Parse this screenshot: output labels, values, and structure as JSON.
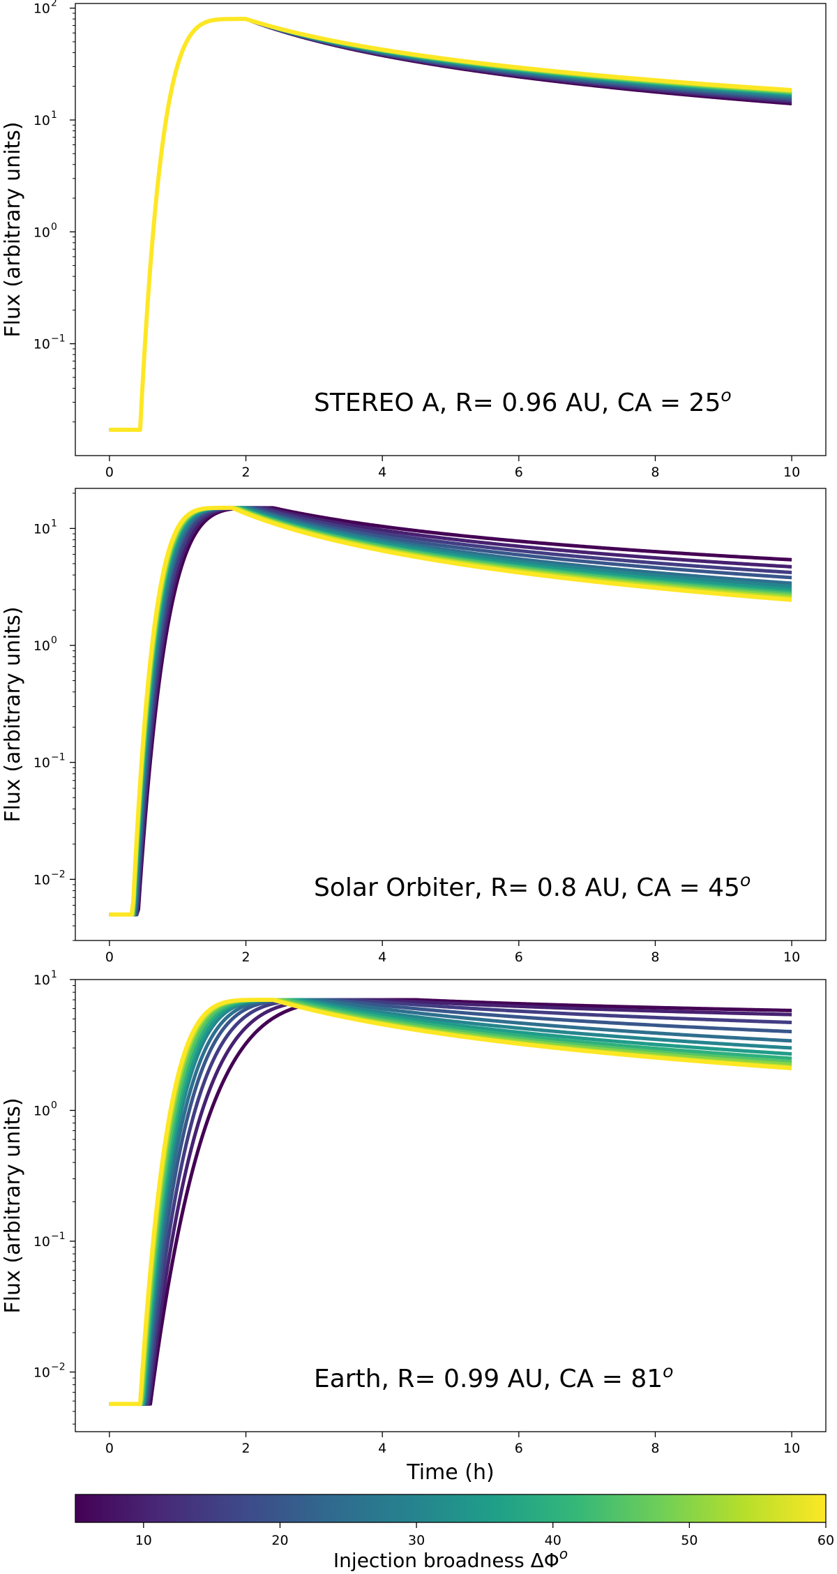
{
  "figure": {
    "colormap": [
      "#440154",
      "#482878",
      "#3e4989",
      "#31688e",
      "#26828e",
      "#1f9e89",
      "#35b779",
      "#6ece58",
      "#b5de2b",
      "#fde725"
    ],
    "colorbar": {
      "label": "Injection broadness ΔΦ",
      "label_superscript": "o",
      "range": [
        5,
        60
      ],
      "ticks": [
        10,
        20,
        30,
        40,
        50,
        60
      ]
    }
  },
  "chart_data": [
    {
      "type": "line",
      "title": "",
      "annotation": "STEREO A, R= 0.96 AU, CA = 25",
      "annotation_superscript": "o",
      "xlabel": "",
      "ylabel": "Flux (arbitrary units)",
      "yscale": "log",
      "xlim": [
        -0.5,
        10.5
      ],
      "ylim": [
        0.01,
        110
      ],
      "xticks": [
        0,
        2,
        4,
        6,
        8,
        10
      ],
      "yticks": [
        {
          "value": 100,
          "base": "10",
          "exp": "2"
        },
        {
          "value": 10,
          "base": "10",
          "exp": "1"
        },
        {
          "value": 1,
          "base": "10",
          "exp": "0"
        },
        {
          "value": 0.1,
          "base": "10",
          "exp": "−1"
        }
      ],
      "series": [
        {
          "name": "ΔΦ=5",
          "param": 5,
          "peak": 80,
          "t_peak": 2.0,
          "end": 14,
          "baseline": 0.017,
          "onset": 0.45
        },
        {
          "name": "ΔΦ=10",
          "param": 10,
          "peak": 80,
          "t_peak": 2.0,
          "end": 14.5,
          "baseline": 0.017,
          "onset": 0.45
        },
        {
          "name": "ΔΦ=15",
          "param": 15,
          "peak": 80,
          "t_peak": 2.0,
          "end": 15,
          "baseline": 0.017,
          "onset": 0.45
        },
        {
          "name": "ΔΦ=20",
          "param": 20,
          "peak": 80,
          "t_peak": 2.0,
          "end": 15.5,
          "baseline": 0.017,
          "onset": 0.45
        },
        {
          "name": "ΔΦ=25",
          "param": 25,
          "peak": 80,
          "t_peak": 2.0,
          "end": 16,
          "baseline": 0.017,
          "onset": 0.45
        },
        {
          "name": "ΔΦ=30",
          "param": 30,
          "peak": 80,
          "t_peak": 2.0,
          "end": 16.5,
          "baseline": 0.017,
          "onset": 0.45
        },
        {
          "name": "ΔΦ=35",
          "param": 35,
          "peak": 80,
          "t_peak": 2.0,
          "end": 17,
          "baseline": 0.017,
          "onset": 0.45
        },
        {
          "name": "ΔΦ=40",
          "param": 40,
          "peak": 80,
          "t_peak": 2.0,
          "end": 17.3,
          "baseline": 0.017,
          "onset": 0.45
        },
        {
          "name": "ΔΦ=45",
          "param": 45,
          "peak": 80,
          "t_peak": 2.0,
          "end": 17.6,
          "baseline": 0.017,
          "onset": 0.45
        },
        {
          "name": "ΔΦ=50",
          "param": 50,
          "peak": 80,
          "t_peak": 2.0,
          "end": 17.9,
          "baseline": 0.017,
          "onset": 0.45
        },
        {
          "name": "ΔΦ=55",
          "param": 55,
          "peak": 80,
          "t_peak": 2.0,
          "end": 18.2,
          "baseline": 0.017,
          "onset": 0.45
        },
        {
          "name": "ΔΦ=60",
          "param": 60,
          "peak": 80,
          "t_peak": 2.0,
          "end": 18.5,
          "baseline": 0.017,
          "onset": 0.45
        }
      ]
    },
    {
      "type": "line",
      "title": "",
      "annotation": "Solar Orbiter, R= 0.8 AU, CA = 45",
      "annotation_superscript": "o",
      "xlabel": "",
      "ylabel": "Flux (arbitrary units)",
      "yscale": "log",
      "xlim": [
        -0.5,
        10.5
      ],
      "ylim": [
        0.003,
        22
      ],
      "xticks": [
        0,
        2,
        4,
        6,
        8,
        10
      ],
      "yticks": [
        {
          "value": 10,
          "base": "10",
          "exp": "1"
        },
        {
          "value": 1,
          "base": "10",
          "exp": "0"
        },
        {
          "value": 0.1,
          "base": "10",
          "exp": "−1"
        },
        {
          "value": 0.01,
          "base": "10",
          "exp": "−2"
        }
      ],
      "series": [
        {
          "name": "ΔΦ=5",
          "param": 5,
          "peak": 15,
          "t_peak": 2.4,
          "end": 5.4,
          "baseline": 0.005,
          "onset": 0.42
        },
        {
          "name": "ΔΦ=10",
          "param": 10,
          "peak": 15,
          "t_peak": 2.3,
          "end": 4.7,
          "baseline": 0.005,
          "onset": 0.41
        },
        {
          "name": "ΔΦ=15",
          "param": 15,
          "peak": 15,
          "t_peak": 2.2,
          "end": 4.2,
          "baseline": 0.005,
          "onset": 0.4
        },
        {
          "name": "ΔΦ=20",
          "param": 20,
          "peak": 15,
          "t_peak": 2.1,
          "end": 3.8,
          "baseline": 0.005,
          "onset": 0.39
        },
        {
          "name": "ΔΦ=25",
          "param": 25,
          "peak": 15,
          "t_peak": 2.05,
          "end": 3.4,
          "baseline": 0.005,
          "onset": 0.38
        },
        {
          "name": "ΔΦ=30",
          "param": 30,
          "peak": 15,
          "t_peak": 2.0,
          "end": 3.2,
          "baseline": 0.005,
          "onset": 0.37
        },
        {
          "name": "ΔΦ=35",
          "param": 35,
          "peak": 15,
          "t_peak": 1.95,
          "end": 3.0,
          "baseline": 0.005,
          "onset": 0.36
        },
        {
          "name": "ΔΦ=40",
          "param": 40,
          "peak": 15,
          "t_peak": 1.9,
          "end": 2.85,
          "baseline": 0.005,
          "onset": 0.36
        },
        {
          "name": "ΔΦ=45",
          "param": 45,
          "peak": 15,
          "t_peak": 1.9,
          "end": 2.75,
          "baseline": 0.005,
          "onset": 0.35
        },
        {
          "name": "ΔΦ=50",
          "param": 50,
          "peak": 15,
          "t_peak": 1.85,
          "end": 2.65,
          "baseline": 0.005,
          "onset": 0.35
        },
        {
          "name": "ΔΦ=55",
          "param": 55,
          "peak": 15,
          "t_peak": 1.85,
          "end": 2.55,
          "baseline": 0.005,
          "onset": 0.34
        },
        {
          "name": "ΔΦ=60",
          "param": 60,
          "peak": 15,
          "t_peak": 1.8,
          "end": 2.45,
          "baseline": 0.005,
          "onset": 0.34
        }
      ]
    },
    {
      "type": "line",
      "title": "",
      "annotation": "Earth, R= 0.99 AU, CA = 81",
      "annotation_superscript": "o",
      "xlabel": "Time (h)",
      "ylabel": "Flux (arbitrary units)",
      "yscale": "log",
      "xlim": [
        -0.5,
        10.5
      ],
      "ylim": [
        0.0035,
        10
      ],
      "xticks": [
        0,
        2,
        4,
        6,
        8,
        10
      ],
      "yticks": [
        {
          "value": 10,
          "base": "10",
          "exp": "1"
        },
        {
          "value": 1,
          "base": "10",
          "exp": "0"
        },
        {
          "value": 0.1,
          "base": "10",
          "exp": "−1"
        },
        {
          "value": 0.01,
          "base": "10",
          "exp": "−2"
        }
      ],
      "series": [
        {
          "name": "ΔΦ=5",
          "param": 5,
          "peak": 7.0,
          "t_peak": 4.5,
          "end": 5.8,
          "baseline": 0.0057,
          "onset": 0.6
        },
        {
          "name": "ΔΦ=10",
          "param": 10,
          "peak": 7.0,
          "t_peak": 4.0,
          "end": 5.4,
          "baseline": 0.0057,
          "onset": 0.58
        },
        {
          "name": "ΔΦ=15",
          "param": 15,
          "peak": 7.0,
          "t_peak": 3.6,
          "end": 4.7,
          "baseline": 0.0057,
          "onset": 0.56
        },
        {
          "name": "ΔΦ=20",
          "param": 20,
          "peak": 7.0,
          "t_peak": 3.3,
          "end": 4.0,
          "baseline": 0.0057,
          "onset": 0.54
        },
        {
          "name": "ΔΦ=25",
          "param": 25,
          "peak": 7.0,
          "t_peak": 3.1,
          "end": 3.4,
          "baseline": 0.0057,
          "onset": 0.52
        },
        {
          "name": "ΔΦ=30",
          "param": 30,
          "peak": 7.0,
          "t_peak": 2.9,
          "end": 3.0,
          "baseline": 0.0057,
          "onset": 0.51
        },
        {
          "name": "ΔΦ=35",
          "param": 35,
          "peak": 7.0,
          "t_peak": 2.8,
          "end": 2.7,
          "baseline": 0.0057,
          "onset": 0.5
        },
        {
          "name": "ΔΦ=40",
          "param": 40,
          "peak": 7.0,
          "t_peak": 2.7,
          "end": 2.5,
          "baseline": 0.0057,
          "onset": 0.49
        },
        {
          "name": "ΔΦ=45",
          "param": 45,
          "peak": 7.0,
          "t_peak": 2.6,
          "end": 2.35,
          "baseline": 0.0057,
          "onset": 0.48
        },
        {
          "name": "ΔΦ=50",
          "param": 50,
          "peak": 7.0,
          "t_peak": 2.5,
          "end": 2.25,
          "baseline": 0.0057,
          "onset": 0.47
        },
        {
          "name": "ΔΦ=55",
          "param": 55,
          "peak": 7.0,
          "t_peak": 2.45,
          "end": 2.15,
          "baseline": 0.0057,
          "onset": 0.46
        },
        {
          "name": "ΔΦ=60",
          "param": 60,
          "peak": 7.0,
          "t_peak": 2.4,
          "end": 2.1,
          "baseline": 0.0057,
          "onset": 0.45
        }
      ]
    }
  ]
}
